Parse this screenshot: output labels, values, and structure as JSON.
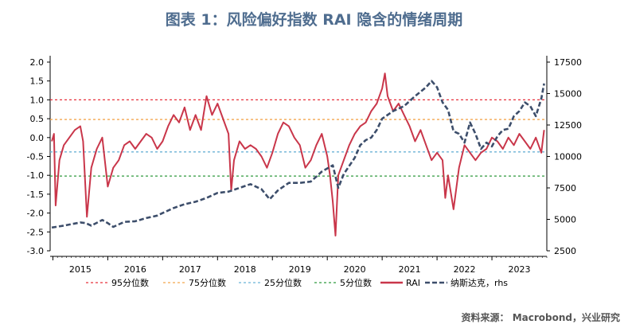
{
  "title": "图表 1：风险偏好指数 RAI 隐含的情绪周期",
  "source": "资料来源： Macrobond，兴业研究",
  "chart_data": {
    "type": "line",
    "x_categories": [
      "2015",
      "2016",
      "2017",
      "2018",
      "2019",
      "2020",
      "2021",
      "2022",
      "2023"
    ],
    "y_left": {
      "min": -3.0,
      "max": 2.0,
      "ticks": [
        "2.0",
        "1.5",
        "1.0",
        "0.5",
        "0.0",
        "-0.5",
        "-1.0",
        "-1.5",
        "-2.0",
        "-2.5",
        "-3.0"
      ]
    },
    "y_right": {
      "min": 2500,
      "max": 17500,
      "ticks": [
        "17500",
        "15000",
        "12500",
        "10000",
        "7500",
        "5000",
        "2500"
      ]
    },
    "reference_lines": [
      {
        "name": "95分位数",
        "value": 1.0,
        "color": "#e8303a"
      },
      {
        "name": "75分位数",
        "value": 0.48,
        "color": "#f3a64e"
      },
      {
        "name": "25分位数",
        "value": -0.38,
        "color": "#6bb3d6"
      },
      {
        "name": "5分位数",
        "value": -1.02,
        "color": "#2f9a3e"
      }
    ],
    "series": [
      {
        "name": "RAI",
        "axis": "left",
        "color": "#c9364a",
        "points": [
          [
            2014.98,
            -0.1
          ],
          [
            2015.02,
            0.1
          ],
          [
            2015.05,
            -1.8
          ],
          [
            2015.12,
            -0.6
          ],
          [
            2015.2,
            -0.2
          ],
          [
            2015.3,
            0.0
          ],
          [
            2015.4,
            0.2
          ],
          [
            2015.5,
            0.3
          ],
          [
            2015.55,
            -0.1
          ],
          [
            2015.62,
            -2.1
          ],
          [
            2015.7,
            -0.8
          ],
          [
            2015.8,
            -0.3
          ],
          [
            2015.9,
            0.0
          ],
          [
            2016.0,
            -1.3
          ],
          [
            2016.1,
            -0.8
          ],
          [
            2016.2,
            -0.6
          ],
          [
            2016.3,
            -0.2
          ],
          [
            2016.4,
            -0.1
          ],
          [
            2016.5,
            -0.3
          ],
          [
            2016.6,
            -0.1
          ],
          [
            2016.7,
            0.1
          ],
          [
            2016.8,
            0.0
          ],
          [
            2016.9,
            -0.3
          ],
          [
            2017.0,
            -0.1
          ],
          [
            2017.1,
            0.3
          ],
          [
            2017.2,
            0.6
          ],
          [
            2017.3,
            0.4
          ],
          [
            2017.4,
            0.8
          ],
          [
            2017.5,
            0.2
          ],
          [
            2017.6,
            0.6
          ],
          [
            2017.7,
            0.2
          ],
          [
            2017.8,
            1.1
          ],
          [
            2017.9,
            0.6
          ],
          [
            2018.0,
            0.9
          ],
          [
            2018.1,
            0.5
          ],
          [
            2018.2,
            0.1
          ],
          [
            2018.25,
            -1.4
          ],
          [
            2018.3,
            -0.6
          ],
          [
            2018.4,
            -0.1
          ],
          [
            2018.5,
            -0.3
          ],
          [
            2018.6,
            -0.2
          ],
          [
            2018.7,
            -0.3
          ],
          [
            2018.8,
            -0.5
          ],
          [
            2018.9,
            -0.8
          ],
          [
            2019.0,
            -0.4
          ],
          [
            2019.1,
            0.1
          ],
          [
            2019.2,
            0.4
          ],
          [
            2019.3,
            0.3
          ],
          [
            2019.4,
            0.0
          ],
          [
            2019.5,
            -0.2
          ],
          [
            2019.6,
            -0.8
          ],
          [
            2019.7,
            -0.6
          ],
          [
            2019.8,
            -0.2
          ],
          [
            2019.9,
            0.1
          ],
          [
            2020.0,
            -0.5
          ],
          [
            2020.05,
            -1.0
          ],
          [
            2020.1,
            -1.7
          ],
          [
            2020.15,
            -2.6
          ],
          [
            2020.2,
            -1.0
          ],
          [
            2020.3,
            -0.6
          ],
          [
            2020.4,
            -0.2
          ],
          [
            2020.5,
            0.1
          ],
          [
            2020.6,
            0.3
          ],
          [
            2020.7,
            0.4
          ],
          [
            2020.8,
            0.7
          ],
          [
            2020.9,
            0.9
          ],
          [
            2021.0,
            1.3
          ],
          [
            2021.05,
            1.7
          ],
          [
            2021.1,
            1.1
          ],
          [
            2021.2,
            0.7
          ],
          [
            2021.3,
            0.9
          ],
          [
            2021.4,
            0.6
          ],
          [
            2021.5,
            0.3
          ],
          [
            2021.6,
            -0.1
          ],
          [
            2021.7,
            0.2
          ],
          [
            2021.8,
            -0.2
          ],
          [
            2021.9,
            -0.6
          ],
          [
            2022.0,
            -0.4
          ],
          [
            2022.1,
            -0.6
          ],
          [
            2022.15,
            -1.6
          ],
          [
            2022.2,
            -1.0
          ],
          [
            2022.3,
            -1.9
          ],
          [
            2022.4,
            -0.8
          ],
          [
            2022.5,
            -0.2
          ],
          [
            2022.6,
            -0.4
          ],
          [
            2022.7,
            -0.6
          ],
          [
            2022.8,
            -0.4
          ],
          [
            2022.9,
            -0.3
          ],
          [
            2023.0,
            0.0
          ],
          [
            2023.1,
            -0.1
          ],
          [
            2023.2,
            -0.3
          ],
          [
            2023.3,
            0.0
          ],
          [
            2023.4,
            -0.2
          ],
          [
            2023.5,
            0.1
          ],
          [
            2023.6,
            -0.1
          ],
          [
            2023.7,
            -0.3
          ],
          [
            2023.8,
            0.0
          ],
          [
            2023.9,
            -0.4
          ],
          [
            2023.95,
            0.2
          ]
        ]
      },
      {
        "name": "纳斯达克，rhs",
        "axis": "right",
        "color": "#3d4e6b",
        "points": [
          [
            2014.98,
            4350
          ],
          [
            2015.2,
            4500
          ],
          [
            2015.5,
            4750
          ],
          [
            2015.6,
            4700
          ],
          [
            2015.7,
            4500
          ],
          [
            2015.9,
            4950
          ],
          [
            2016.0,
            4700
          ],
          [
            2016.1,
            4400
          ],
          [
            2016.3,
            4800
          ],
          [
            2016.5,
            4850
          ],
          [
            2016.7,
            5100
          ],
          [
            2016.9,
            5300
          ],
          [
            2017.0,
            5500
          ],
          [
            2017.2,
            5900
          ],
          [
            2017.4,
            6200
          ],
          [
            2017.6,
            6400
          ],
          [
            2017.8,
            6700
          ],
          [
            2018.0,
            7100
          ],
          [
            2018.2,
            7200
          ],
          [
            2018.4,
            7500
          ],
          [
            2018.6,
            7800
          ],
          [
            2018.8,
            7400
          ],
          [
            2018.95,
            6600
          ],
          [
            2019.1,
            7300
          ],
          [
            2019.3,
            7900
          ],
          [
            2019.5,
            7900
          ],
          [
            2019.7,
            8000
          ],
          [
            2019.9,
            8800
          ],
          [
            2020.1,
            9300
          ],
          [
            2020.2,
            7500
          ],
          [
            2020.3,
            8600
          ],
          [
            2020.5,
            9900
          ],
          [
            2020.6,
            10900
          ],
          [
            2020.7,
            11300
          ],
          [
            2020.8,
            11500
          ],
          [
            2020.9,
            12100
          ],
          [
            2021.0,
            13000
          ],
          [
            2021.2,
            13600
          ],
          [
            2021.4,
            14000
          ],
          [
            2021.6,
            14800
          ],
          [
            2021.8,
            15500
          ],
          [
            2021.9,
            16000
          ],
          [
            2022.0,
            15500
          ],
          [
            2022.1,
            14300
          ],
          [
            2022.2,
            13700
          ],
          [
            2022.3,
            12000
          ],
          [
            2022.4,
            11800
          ],
          [
            2022.5,
            11100
          ],
          [
            2022.6,
            12700
          ],
          [
            2022.7,
            11800
          ],
          [
            2022.8,
            10600
          ],
          [
            2022.9,
            11100
          ],
          [
            2023.0,
            10800
          ],
          [
            2023.1,
            11600
          ],
          [
            2023.2,
            12100
          ],
          [
            2023.3,
            12200
          ],
          [
            2023.4,
            13200
          ],
          [
            2023.5,
            13600
          ],
          [
            2023.6,
            14300
          ],
          [
            2023.7,
            14000
          ],
          [
            2023.8,
            13200
          ],
          [
            2023.9,
            14600
          ],
          [
            2023.95,
            15800
          ]
        ]
      }
    ],
    "legend": [
      "95分位数",
      "75分位数",
      "25分位数",
      "5分位数",
      "RAI",
      "纳斯达克，rhs"
    ],
    "legend_position": "bottom",
    "grid": false
  }
}
